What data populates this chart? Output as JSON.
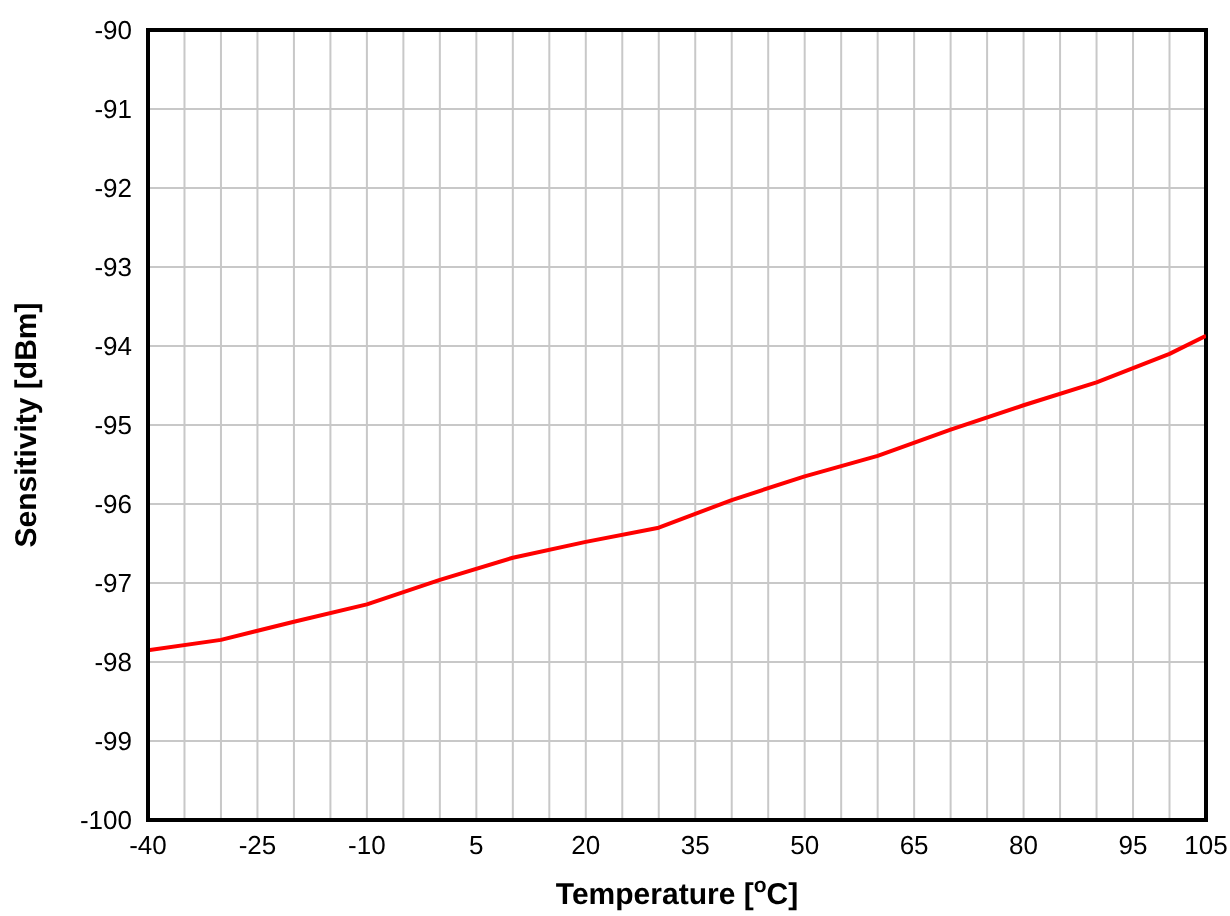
{
  "chart_data": {
    "type": "line",
    "xlabel": "Temperature [$^{o}$C]",
    "ylabel": "Sensitivity [dBm]",
    "x": [
      -40,
      -30,
      -20,
      -10,
      0,
      10,
      20,
      30,
      40,
      50,
      60,
      70,
      80,
      90,
      100,
      105
    ],
    "series": [
      {
        "color": "#ff0000",
        "values": [
          -97.85,
          -97.72,
          -97.49,
          -97.27,
          -96.96,
          -96.68,
          -96.48,
          -96.3,
          -95.95,
          -95.65,
          -95.39,
          -95.06,
          -94.75,
          -94.46,
          -94.1,
          -93.87
        ]
      }
    ],
    "xlim": [
      -40,
      105
    ],
    "xticks": [
      -40,
      {
        "value": -35,
        "label": null
      },
      {
        "value": -30,
        "label": null
      },
      -25,
      {
        "value": -20,
        "label": null
      },
      {
        "value": -15,
        "label": null
      },
      -10,
      {
        "value": -5,
        "label": null
      },
      {
        "value": 0,
        "label": null
      },
      5,
      {
        "value": 10,
        "label": null
      },
      {
        "value": 15,
        "label": null
      },
      20,
      {
        "value": 25,
        "label": null
      },
      {
        "value": 30,
        "label": null
      },
      35,
      {
        "value": 40,
        "label": null
      },
      {
        "value": 45,
        "label": null
      },
      50,
      {
        "value": 55,
        "label": null
      },
      {
        "value": 60,
        "label": null
      },
      65,
      {
        "value": 70,
        "label": null
      },
      {
        "value": 75,
        "label": null
      },
      80,
      {
        "value": 85,
        "label": null
      },
      {
        "value": 90,
        "label": null
      },
      95,
      {
        "value": 100,
        "label": null
      },
      105
    ],
    "ylim": [
      -100,
      -90
    ],
    "yticks": [
      -100,
      -99,
      -98,
      -97,
      -96,
      -95,
      -94,
      -93,
      -92,
      -91,
      -90
    ],
    "grid": true,
    "legend": false,
    "marker": "none",
    "line_style": "solid"
  }
}
